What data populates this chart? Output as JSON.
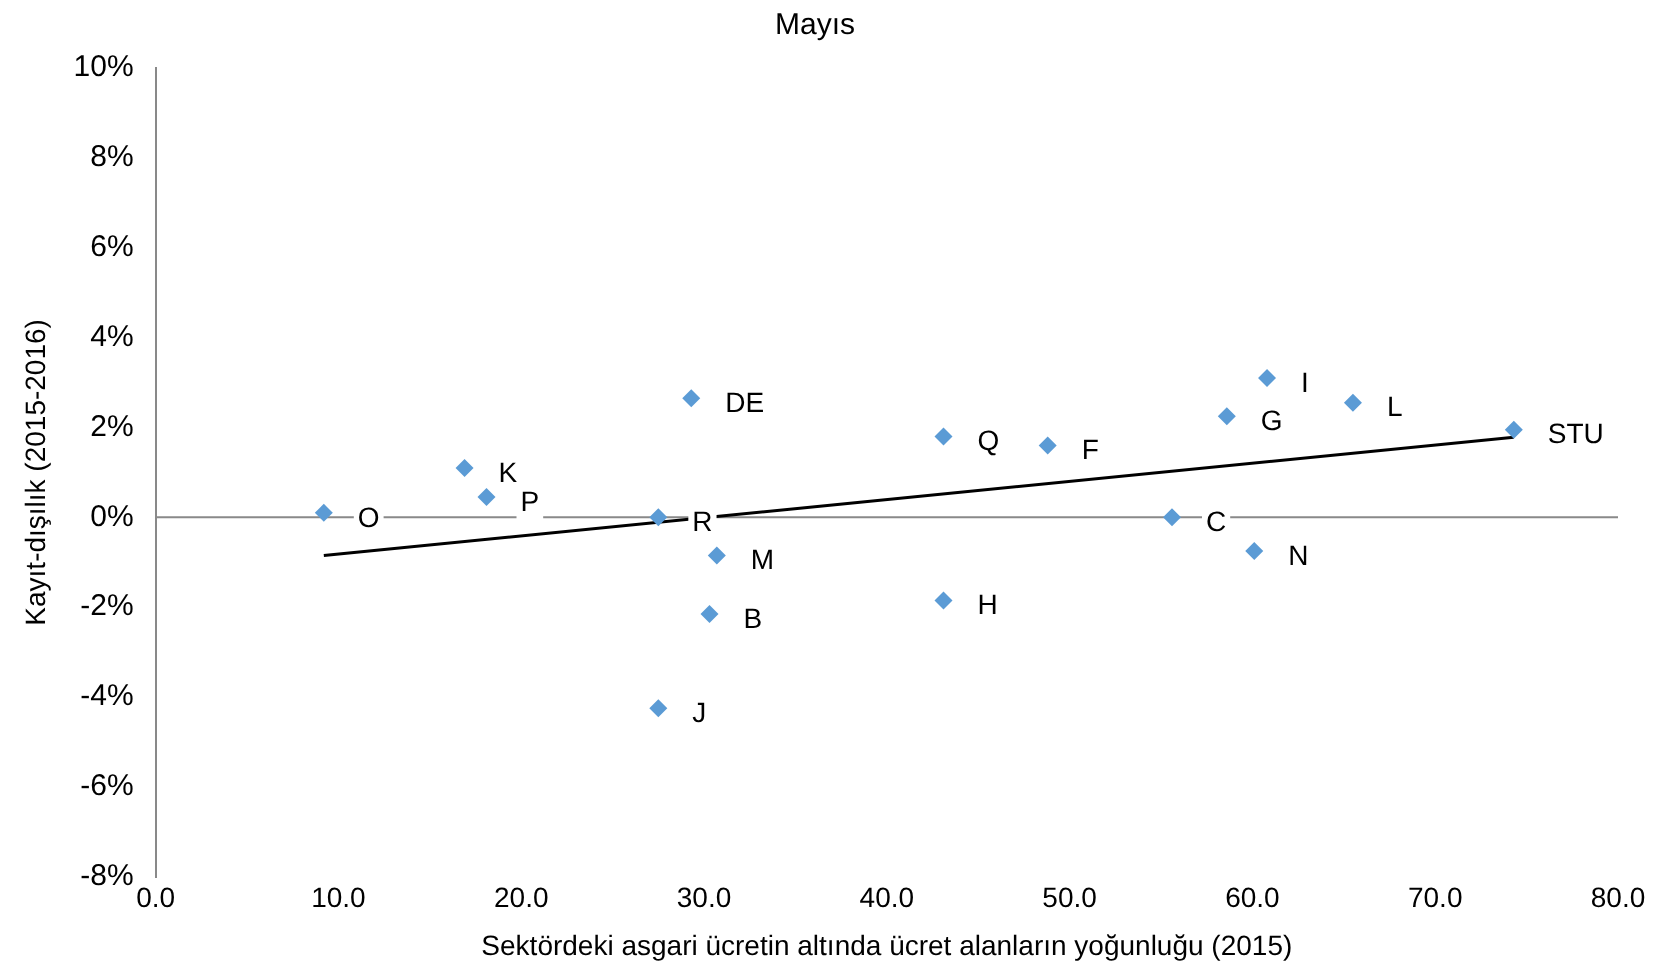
{
  "chart_data": {
    "type": "scatter",
    "title": "Mayıs",
    "xlabel": "Sektördeki asgari ücretin altında ücret alanların yoğunluğu (2015)",
    "ylabel": "Kayıt-dışılık (2015-2016)",
    "x": [
      9.2,
      16.9,
      18.1,
      27.5,
      29.3,
      30.7,
      30.3,
      27.5,
      43.1,
      43.1,
      48.8,
      55.6,
      60.1,
      58.6,
      60.8,
      65.5,
      74.3
    ],
    "series": [
      {
        "color": "#5b9bd5",
        "values": [
          0.1,
          1.1,
          0.45,
          0.0,
          2.65,
          -0.85,
          -2.15,
          -4.25,
          1.8,
          -1.85,
          1.6,
          0.0,
          -0.75,
          2.25,
          3.1,
          2.55,
          1.95
        ]
      },
      {
        "type": "line",
        "color": "#000000",
        "x": [
          9.2,
          74.3
        ],
        "values": [
          -0.85,
          1.78
        ],
        "marker": "none"
      }
    ],
    "marker": "diamond",
    "legend": false,
    "grid": false,
    "xlim": [
      0,
      80
    ],
    "xticks": [
      {
        "value": 0,
        "label": "0.0"
      },
      {
        "value": 10,
        "label": "10.0"
      },
      {
        "value": 20,
        "label": "20.0"
      },
      {
        "value": 30,
        "label": "30.0"
      },
      {
        "value": 40,
        "label": "40.0"
      },
      {
        "value": 50,
        "label": "50.0"
      },
      {
        "value": 60,
        "label": "60.0"
      },
      {
        "value": 70,
        "label": "70.0"
      },
      {
        "value": 80,
        "label": "80.0"
      }
    ],
    "ylim": [
      -8,
      10
    ],
    "yticks": [
      {
        "value": -8,
        "label": "-8%"
      },
      {
        "value": -6,
        "label": "-6%"
      },
      {
        "value": -4,
        "label": "-4%"
      },
      {
        "value": -2,
        "label": "-2%"
      },
      {
        "value": 0,
        "label": "0%"
      },
      {
        "value": 2,
        "label": "2%"
      },
      {
        "value": 4,
        "label": "4%"
      },
      {
        "value": 6,
        "label": "6%"
      },
      {
        "value": 8,
        "label": "8%"
      },
      {
        "value": 10,
        "label": "10%"
      }
    ],
    "ref_lines": [
      {
        "axis": "y",
        "value": 0,
        "color": "#898989"
      }
    ],
    "annotations": [
      {
        "text": "O",
        "x": 9.2,
        "y": 0.1
      },
      {
        "text": "K",
        "x": 16.9,
        "y": 1.1
      },
      {
        "text": "P",
        "x": 18.1,
        "y": 0.45
      },
      {
        "text": "R",
        "x": 27.5,
        "y": 0.0
      },
      {
        "text": "DE",
        "x": 29.3,
        "y": 2.65
      },
      {
        "text": "M",
        "x": 30.7,
        "y": -0.85
      },
      {
        "text": "B",
        "x": 30.3,
        "y": -2.15
      },
      {
        "text": "J",
        "x": 27.5,
        "y": -4.25
      },
      {
        "text": "Q",
        "x": 43.1,
        "y": 1.8
      },
      {
        "text": "H",
        "x": 43.1,
        "y": -1.85
      },
      {
        "text": "F",
        "x": 48.8,
        "y": 1.6
      },
      {
        "text": "C",
        "x": 55.6,
        "y": 0.0
      },
      {
        "text": "N",
        "x": 60.1,
        "y": -0.75
      },
      {
        "text": "G",
        "x": 58.6,
        "y": 2.25
      },
      {
        "text": "I",
        "x": 60.8,
        "y": 3.1
      },
      {
        "text": "L",
        "x": 65.5,
        "y": 2.55
      },
      {
        "text": "STU",
        "x": 74.3,
        "y": 1.95
      }
    ]
  }
}
